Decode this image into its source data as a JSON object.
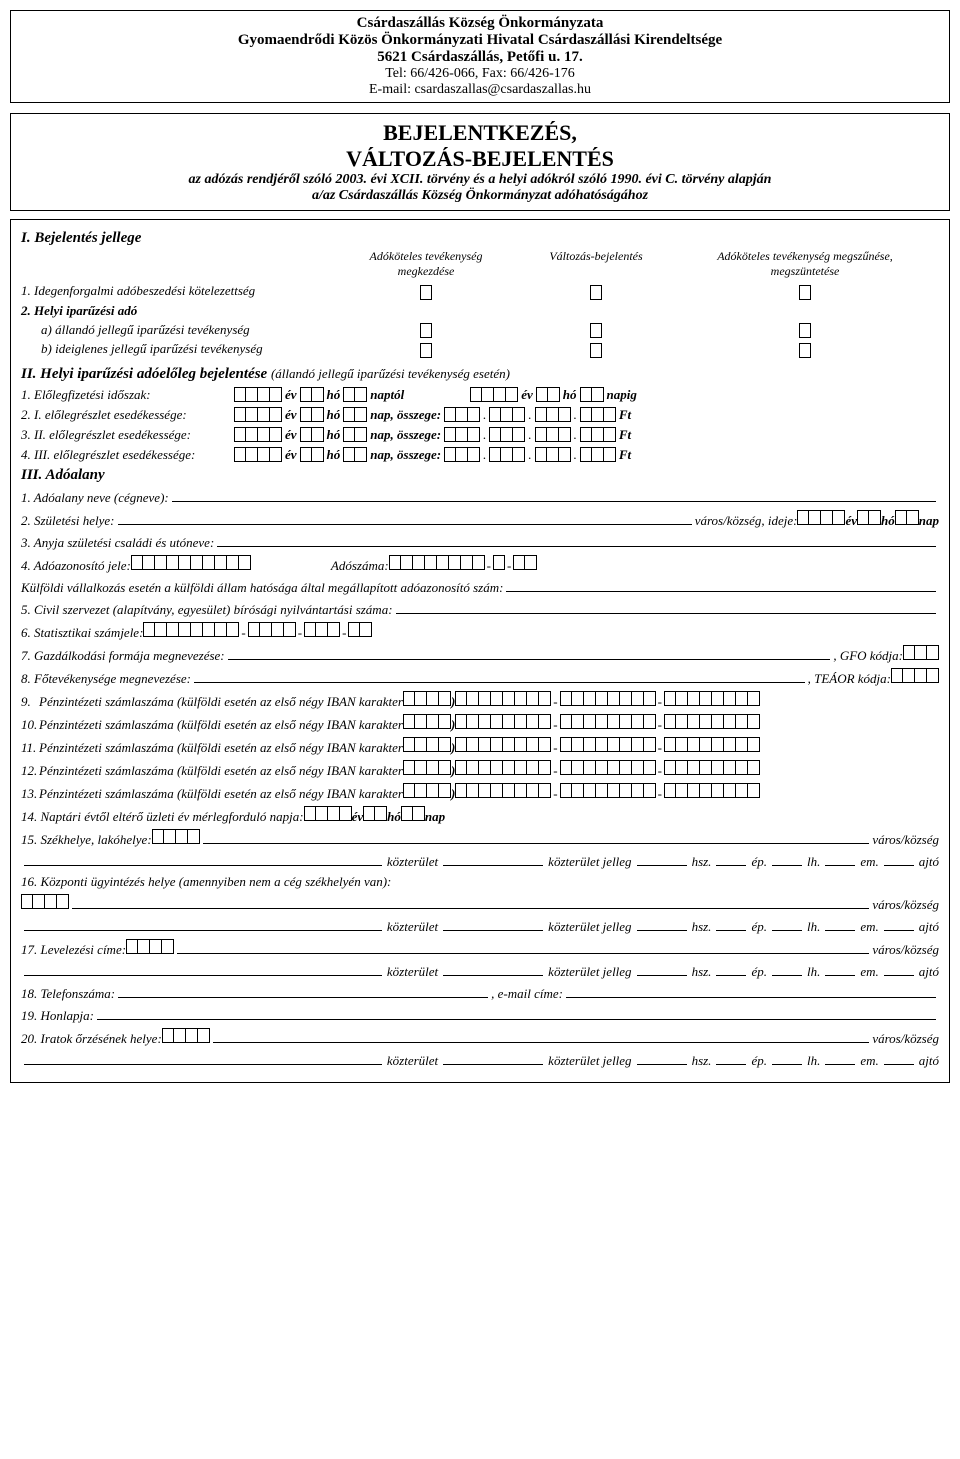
{
  "header": {
    "org1": "Csárdaszállás Község Önkormányzata",
    "org2": "Gyomaendrődi Közös Önkormányzati Hivatal Csárdaszállási Kirendeltsége",
    "addr": "5621 Csárdaszállás, Petőfi u. 17.",
    "tel": "Tel: 66/426-066, Fax: 66/426-176",
    "email": "E-mail: csardaszallas@csardaszallas.hu"
  },
  "title": {
    "t1": "BEJELENTKEZÉS,",
    "t2": "VÁLTOZÁS-BEJELENTÉS",
    "sub1": "az adózás rendjéről szóló 2003. évi XCII. törvény és a helyi adókról szóló 1990. évi C. törvény alapján",
    "sub2": "a/az  Csárdaszállás Község Önkormányzat adóhatóságához"
  },
  "s1": {
    "head": "I. Bejelentés jellege",
    "col1a": "Adóköteles tevékenység",
    "col1b": "megkezdése",
    "col2": "Változás-bejelentés",
    "col3a": "Adóköteles tevékenység megszűnése,",
    "col3b": "megszüntetése",
    "r1": "1. Idegenforgalmi adóbeszedési kötelezettség",
    "r2": "2. Helyi iparűzési adó",
    "r2a": "a) állandó jellegű iparűzési tevékenység",
    "r2b": "b) ideiglenes jellegű iparűzési tevékenység"
  },
  "s2": {
    "head": "II. Helyi iparűzési adóelőleg bejelentése",
    "paren": "(állandó jellegű iparűzési tevékenység esetén)",
    "r1": "1. Előlegfizetési időszak:",
    "r2": "2. I. előlegrészlet esedékessége:",
    "r3": "3. II. előlegrészlet esedékessége:",
    "r4": "4. III. előlegrészlet esedékessége:",
    "ev": "év",
    "ho": "hó",
    "naptol": "naptól",
    "napig": "napig",
    "nap_osszege": "nap, összege:",
    "ft": "Ft"
  },
  "s3": {
    "head": "III. Adóalany",
    "r1": "1. Adóalany neve (cégneve):",
    "r2": "2. Születési helye:",
    "r2b": "város/község, ideje:",
    "ev": "év",
    "ho": "hó",
    "nap": "nap",
    "r3": "3. Anyja születési családi és utóneve:",
    "r4": "4. Adóazonosító jele:",
    "r4b": "Adószáma:",
    "kulf": "Külföldi vállalkozás esetén a külföldi állam hatósága által megállapított adóazonosító szám:",
    "r5": "5. Civil szervezet (alapítvány, egyesület) bírósági nyilvántartási száma:",
    "r6": "6. Statisztikai számjele:",
    "r7": "7. Gazdálkodási formája megnevezése:",
    "r7b": ", GFO kódja:",
    "r8": "8. Főtevékenysége megnevezése:",
    "r8b": ", TEÁOR kódja:",
    "bank_pre": "Pénzintézeti számlaszáma (külföldi esetén az első négy IBAN karakter",
    "r9": "9.",
    "r10": "10.",
    "r11": "11.",
    "r12": "12.",
    "r13": "13.",
    "bank_close": ")",
    "r14": "14. Naptári évtől eltérő üzleti év mérlegforduló napja:",
    "r15": "15. Székhelye, lakóhelye:",
    "varos": "város/község",
    "kozt": "közterület",
    "kozt_jelleg": "közterület jelleg",
    "hsz": "hsz.",
    "ep": "ép.",
    "lh": "lh.",
    "em": "em.",
    "ajto": "ajtó",
    "r16": "16. Központi ügyintézés helye (amennyiben nem a cég székhelyén van):",
    "r17": "17. Levelezési címe:",
    "r18": "18. Telefonszáma:",
    "r18b": ", e-mail címe:",
    "r19": "19. Honlapja:",
    "r20": "20. Iratok őrzésének helye:"
  }
}
